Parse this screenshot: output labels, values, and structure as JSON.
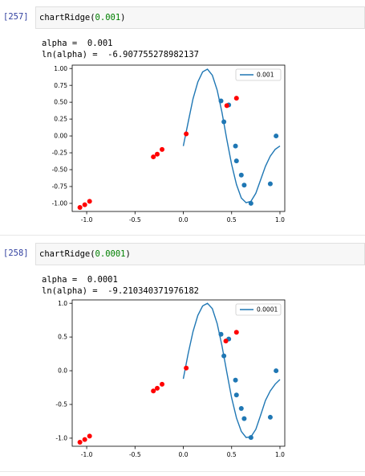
{
  "cells": [
    {
      "prompt": "[257]",
      "code_fn": "chartRidge(",
      "code_arg": "0.001",
      "code_close": ")",
      "output_lines": [
        "alpha =  0.001",
        "ln(alpha) =  -6.907755278982137"
      ],
      "legend": "0.001"
    },
    {
      "prompt": "[258]",
      "code_fn": "chartRidge(",
      "code_arg": "0.0001",
      "code_close": ")",
      "output_lines": [
        "alpha =  0.0001",
        "ln(alpha) =  -9.210340371976182"
      ],
      "legend": "0.0001"
    }
  ],
  "colors": {
    "curve": "#1f77b4",
    "train": "#1f77b4",
    "test": "#ff0000"
  },
  "chart_data": [
    {
      "type": "scatter",
      "title": "",
      "xlabel": "",
      "ylabel": "",
      "xlim": [
        -1.15,
        1.05
      ],
      "ylim": [
        -1.12,
        1.05
      ],
      "xticks": [
        "-1.0",
        "-0.5",
        "0.0",
        "0.5",
        "1.0"
      ],
      "xtick_values": [
        -1.0,
        -0.5,
        0.0,
        0.5,
        1.0
      ],
      "yticks": [
        "1.00",
        "0.75",
        "0.50",
        "0.25",
        "0.00",
        "-0.25",
        "-0.50",
        "-0.75",
        "-1.00"
      ],
      "ytick_values": [
        1.0,
        0.75,
        0.5,
        0.25,
        0.0,
        -0.25,
        -0.5,
        -0.75,
        -1.0
      ],
      "legend_position": "top-right",
      "series": [
        {
          "name": "0.001",
          "kind": "line",
          "x": [
            0.0,
            0.05,
            0.1,
            0.15,
            0.2,
            0.25,
            0.3,
            0.35,
            0.4,
            0.45,
            0.5,
            0.55,
            0.6,
            0.65,
            0.7,
            0.75,
            0.8,
            0.85,
            0.9,
            0.95,
            1.0
          ],
          "y": [
            -0.15,
            0.2,
            0.55,
            0.8,
            0.95,
            0.99,
            0.9,
            0.68,
            0.35,
            -0.05,
            -0.42,
            -0.72,
            -0.92,
            -0.99,
            -0.97,
            -0.85,
            -0.65,
            -0.45,
            -0.3,
            -0.2,
            -0.15
          ]
        },
        {
          "name": "",
          "kind": "points-train",
          "x": [
            0.39,
            0.42,
            0.47,
            0.54,
            0.55,
            0.6,
            0.63,
            0.7,
            0.9,
            0.96
          ],
          "y": [
            0.52,
            0.21,
            0.46,
            -0.15,
            -0.37,
            -0.58,
            -0.73,
            -1.0,
            -0.71,
            0.0
          ]
        },
        {
          "name": "",
          "kind": "points-test",
          "x": [
            -1.07,
            -1.02,
            -0.97,
            -0.31,
            -0.27,
            -0.22,
            0.03,
            0.45,
            0.55
          ],
          "y": [
            -1.06,
            -1.02,
            -0.97,
            -0.31,
            -0.27,
            -0.2,
            0.03,
            0.45,
            0.56
          ]
        }
      ]
    },
    {
      "type": "scatter",
      "title": "",
      "xlabel": "",
      "ylabel": "",
      "xlim": [
        -1.15,
        1.05
      ],
      "ylim": [
        -1.12,
        1.05
      ],
      "xticks": [
        "-1.0",
        "-0.5",
        "0.0",
        "0.5",
        "1.0"
      ],
      "xtick_values": [
        -1.0,
        -0.5,
        0.0,
        0.5,
        1.0
      ],
      "yticks": [
        "1.0",
        "0.5",
        "0.0",
        "-0.5",
        "-1.0"
      ],
      "ytick_values": [
        1.0,
        0.5,
        0.0,
        -0.5,
        -1.0
      ],
      "legend_position": "top-right",
      "series": [
        {
          "name": "0.0001",
          "kind": "line",
          "x": [
            0.0,
            0.05,
            0.1,
            0.15,
            0.2,
            0.25,
            0.3,
            0.35,
            0.4,
            0.45,
            0.5,
            0.55,
            0.6,
            0.65,
            0.7,
            0.75,
            0.8,
            0.85,
            0.9,
            0.95,
            1.0
          ],
          "y": [
            -0.12,
            0.25,
            0.58,
            0.82,
            0.96,
            1.0,
            0.92,
            0.7,
            0.37,
            -0.02,
            -0.4,
            -0.7,
            -0.9,
            -0.99,
            -0.98,
            -0.87,
            -0.66,
            -0.44,
            -0.3,
            -0.2,
            -0.13
          ]
        },
        {
          "name": "",
          "kind": "points-train",
          "x": [
            0.39,
            0.42,
            0.47,
            0.54,
            0.55,
            0.6,
            0.63,
            0.7,
            0.9,
            0.96
          ],
          "y": [
            0.54,
            0.22,
            0.47,
            -0.14,
            -0.36,
            -0.56,
            -0.71,
            -0.99,
            -0.69,
            0.0
          ]
        },
        {
          "name": "",
          "kind": "points-test",
          "x": [
            -1.07,
            -1.02,
            -0.97,
            -0.31,
            -0.27,
            -0.22,
            0.03,
            0.44,
            0.55
          ],
          "y": [
            -1.06,
            -1.02,
            -0.97,
            -0.3,
            -0.26,
            -0.2,
            0.04,
            0.44,
            0.57
          ]
        }
      ]
    }
  ]
}
